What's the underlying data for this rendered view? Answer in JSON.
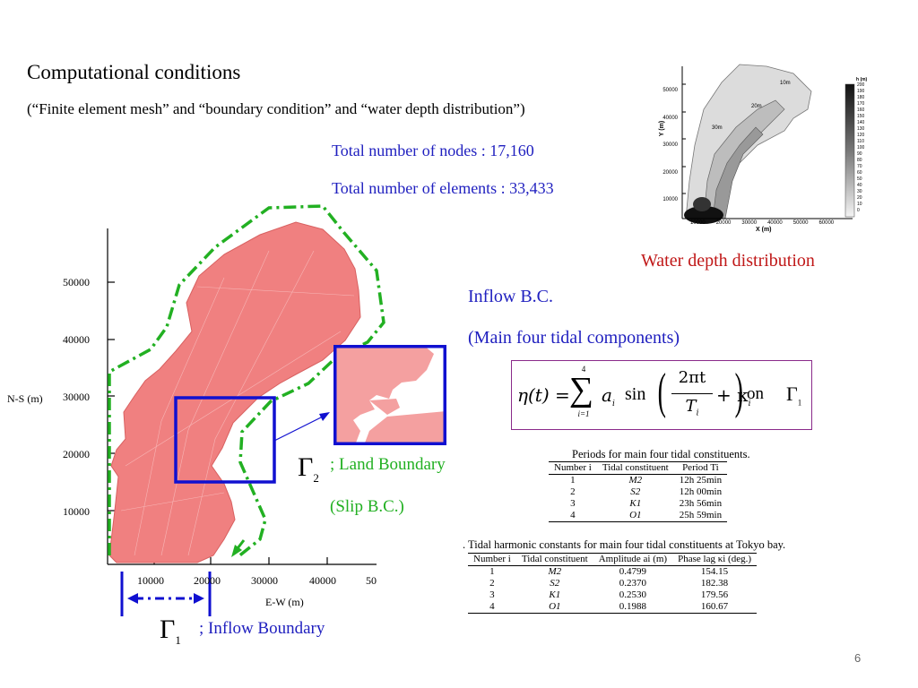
{
  "slide": {
    "title": "Computational conditions",
    "subtitle": "(“Finite element mesh” and “boundary condition” and “water depth distribution”)",
    "nodes": "Total number of nodes : 17,160",
    "elements": "Total number of elements : 33,433",
    "depth_caption": "Water depth distribution",
    "inflow_bc": "Inflow B.C.",
    "tidal_components": "(Main four tidal components)",
    "land_symbol": "Γ",
    "land_sub": "2",
    "land_boundary": "; Land Boundary",
    "slip_bc": "(Slip B.C.)",
    "inflow_symbol": "Γ",
    "inflow_sub": "1",
    "inflow_boundary": "; Inflow Boundary",
    "page_number": "6"
  },
  "mesh_axes": {
    "ylabel": "N-S (m)",
    "xlabel": "E-W (m)",
    "yticks": [
      "50000",
      "40000",
      "30000",
      "20000",
      "10000"
    ],
    "xticks": [
      "10000",
      "20000",
      "30000",
      "40000",
      "50"
    ]
  },
  "depth_map": {
    "ylabel": "Y (m)",
    "xlabel": "X (m)",
    "yticks": [
      "50000",
      "40000",
      "30000",
      "20000",
      "10000"
    ],
    "xticks": [
      "10000",
      "20000",
      "30000",
      "40000",
      "50000",
      "60000"
    ],
    "contours": [
      "10m",
      "20m",
      "30m"
    ],
    "legend_title": "h (m)",
    "legend_levels": [
      "200",
      "190",
      "180",
      "170",
      "160",
      "150",
      "140",
      "130",
      "120",
      "110",
      "100",
      "90",
      "80",
      "70",
      "60",
      "50",
      "40",
      "30",
      "20",
      "10",
      "0"
    ]
  },
  "formula": {
    "lhs": "η(t) =",
    "sum_top": "4",
    "sum_bottom": "i=1",
    "term": "a",
    "sub": "i",
    "sin": "sin",
    "num": "2πt",
    "den": "T",
    "den_sub": "i",
    "plus": "+ κ",
    "on": "on",
    "gamma": "Γ",
    "gamma_sub": "1"
  },
  "periods_table": {
    "caption": "Periods for main four tidal constituents.",
    "headers": [
      "Number i",
      "Tidal constituent",
      "Period Ti"
    ],
    "rows": [
      [
        "1",
        "M2",
        "12h 25min"
      ],
      [
        "2",
        "S2",
        "12h 00min"
      ],
      [
        "3",
        "K1",
        "23h 56min"
      ],
      [
        "4",
        "O1",
        "25h 59min"
      ]
    ]
  },
  "harmonic_table": {
    "caption": ". Tidal harmonic constants for main four tidal constituents at Tokyo bay.",
    "headers": [
      "Number i",
      "Tidal constituent",
      "Amplitude ai (m)",
      "Phase lag κi (deg.)"
    ],
    "rows": [
      [
        "1",
        "M2",
        "0.4799",
        "154.15"
      ],
      [
        "2",
        "S2",
        "0.2370",
        "182.38"
      ],
      [
        "3",
        "K1",
        "0.2530",
        "179.56"
      ],
      [
        "4",
        "O1",
        "0.1988",
        "160.67"
      ]
    ]
  },
  "colors": {
    "mesh_fill": "#f08080",
    "boundary_green": "#22b022",
    "box_blue": "#1010d0",
    "text_blue": "#1f1fbf",
    "caption_red": "#c01818"
  }
}
